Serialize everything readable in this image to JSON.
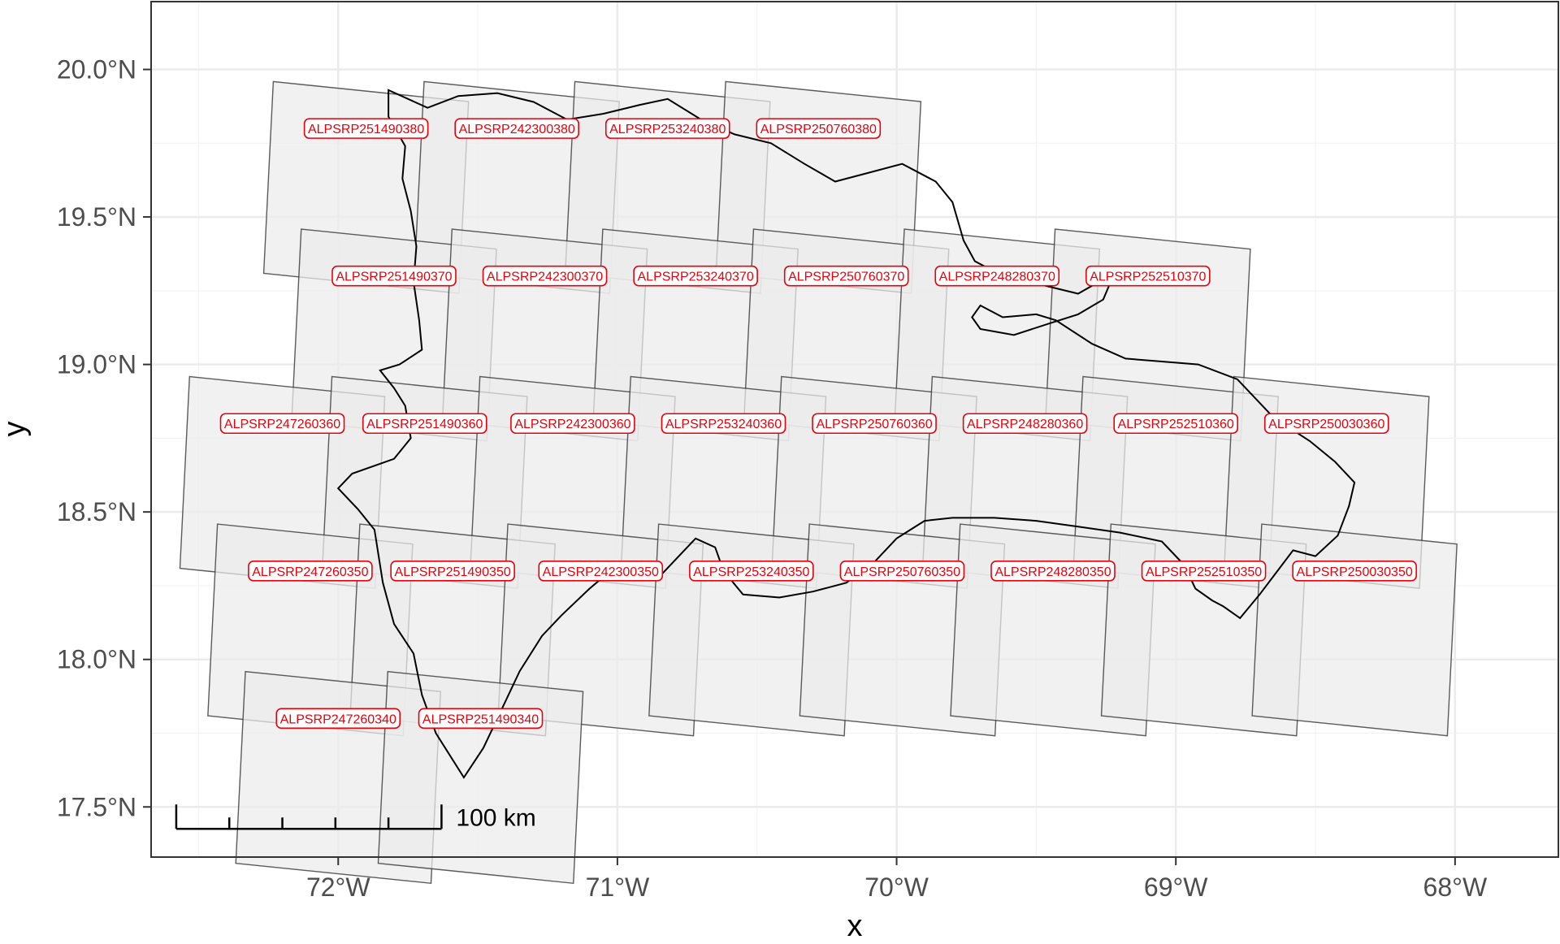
{
  "chart_data": {
    "type": "map",
    "x_label": "x",
    "y_label": "y",
    "x_range": [
      -72.67,
      -67.63
    ],
    "y_range": [
      17.33,
      20.23
    ],
    "x_ticks": [
      {
        "value": -72,
        "label": "72°W"
      },
      {
        "value": -71,
        "label": "71°W"
      },
      {
        "value": -70,
        "label": "70°W"
      },
      {
        "value": -69,
        "label": "69°W"
      },
      {
        "value": -68,
        "label": "68°W"
      }
    ],
    "y_ticks": [
      {
        "value": 17.5,
        "label": "17.5°N"
      },
      {
        "value": 18.0,
        "label": "18.0°N"
      },
      {
        "value": 18.5,
        "label": "18.5°N"
      },
      {
        "value": 19.0,
        "label": "19.0°N"
      },
      {
        "value": 19.5,
        "label": "19.5°N"
      },
      {
        "value": 20.0,
        "label": "20.0°N"
      }
    ],
    "grid": true,
    "footprint_color": "#ebebeb",
    "label_color": "#e8000b",
    "coastline_color": "#000000",
    "scale_bar": {
      "label": "100 km",
      "segments": 5,
      "lon_start": -72.58,
      "lon_end": -71.63,
      "lat": 17.5
    },
    "scenes": [
      {
        "label": "ALPSRP251490380",
        "lon": -71.9,
        "lat": 19.8
      },
      {
        "label": "ALPSRP242300380",
        "lon": -71.36,
        "lat": 19.8
      },
      {
        "label": "ALPSRP253240380",
        "lon": -70.82,
        "lat": 19.8
      },
      {
        "label": "ALPSRP250760380",
        "lon": -70.28,
        "lat": 19.8
      },
      {
        "label": "ALPSRP251490370",
        "lon": -71.8,
        "lat": 19.3
      },
      {
        "label": "ALPSRP242300370",
        "lon": -71.26,
        "lat": 19.3
      },
      {
        "label": "ALPSRP253240370",
        "lon": -70.72,
        "lat": 19.3
      },
      {
        "label": "ALPSRP250760370",
        "lon": -70.18,
        "lat": 19.3
      },
      {
        "label": "ALPSRP248280370",
        "lon": -69.64,
        "lat": 19.3
      },
      {
        "label": "ALPSRP252510370",
        "lon": -69.1,
        "lat": 19.3
      },
      {
        "label": "ALPSRP247260360",
        "lon": -72.2,
        "lat": 18.8
      },
      {
        "label": "ALPSRP251490360",
        "lon": -71.69,
        "lat": 18.8
      },
      {
        "label": "ALPSRP242300360",
        "lon": -71.16,
        "lat": 18.8
      },
      {
        "label": "ALPSRP253240360",
        "lon": -70.62,
        "lat": 18.8
      },
      {
        "label": "ALPSRP250760360",
        "lon": -70.08,
        "lat": 18.8
      },
      {
        "label": "ALPSRP248280360",
        "lon": -69.54,
        "lat": 18.8
      },
      {
        "label": "ALPSRP252510360",
        "lon": -69.0,
        "lat": 18.8
      },
      {
        "label": "ALPSRP250030360",
        "lon": -68.46,
        "lat": 18.8
      },
      {
        "label": "ALPSRP247260350",
        "lon": -72.1,
        "lat": 18.3
      },
      {
        "label": "ALPSRP251490350",
        "lon": -71.59,
        "lat": 18.3
      },
      {
        "label": "ALPSRP242300350",
        "lon": -71.06,
        "lat": 18.3
      },
      {
        "label": "ALPSRP253240350",
        "lon": -70.52,
        "lat": 18.3
      },
      {
        "label": "ALPSRP250760350",
        "lon": -69.98,
        "lat": 18.3
      },
      {
        "label": "ALPSRP248280350",
        "lon": -69.44,
        "lat": 18.3
      },
      {
        "label": "ALPSRP252510350",
        "lon": -68.9,
        "lat": 18.3
      },
      {
        "label": "ALPSRP250030350",
        "lon": -68.36,
        "lat": 18.3
      },
      {
        "label": "ALPSRP247260340",
        "lon": -72.0,
        "lat": 17.8
      },
      {
        "label": "ALPSRP251490340",
        "lon": -71.49,
        "lat": 17.8
      }
    ],
    "coastline": [
      [
        -71.82,
        19.93
      ],
      [
        -71.68,
        19.87
      ],
      [
        -71.57,
        19.91
      ],
      [
        -71.43,
        19.92
      ],
      [
        -71.3,
        19.89
      ],
      [
        -71.18,
        19.83
      ],
      [
        -71.05,
        19.85
      ],
      [
        -70.92,
        19.88
      ],
      [
        -70.82,
        19.9
      ],
      [
        -70.7,
        19.83
      ],
      [
        -70.58,
        19.78
      ],
      [
        -70.45,
        19.75
      ],
      [
        -70.33,
        19.68
      ],
      [
        -70.22,
        19.62
      ],
      [
        -70.1,
        19.65
      ],
      [
        -69.98,
        19.68
      ],
      [
        -69.86,
        19.62
      ],
      [
        -69.8,
        19.55
      ],
      [
        -69.76,
        19.42
      ],
      [
        -69.72,
        19.35
      ],
      [
        -69.6,
        19.29
      ],
      [
        -69.48,
        19.27
      ],
      [
        -69.35,
        19.24
      ],
      [
        -69.22,
        19.31
      ],
      [
        -69.26,
        19.22
      ],
      [
        -69.35,
        19.17
      ],
      [
        -69.45,
        19.14
      ],
      [
        -69.58,
        19.1
      ],
      [
        -69.7,
        19.12
      ],
      [
        -69.73,
        19.16
      ],
      [
        -69.7,
        19.2
      ],
      [
        -69.62,
        19.16
      ],
      [
        -69.5,
        19.17
      ],
      [
        -69.43,
        19.15
      ],
      [
        -69.3,
        19.07
      ],
      [
        -69.18,
        19.02
      ],
      [
        -69.05,
        19.01
      ],
      [
        -68.92,
        19.0
      ],
      [
        -68.78,
        18.95
      ],
      [
        -68.65,
        18.82
      ],
      [
        -68.52,
        18.74
      ],
      [
        -68.43,
        18.67
      ],
      [
        -68.36,
        18.6
      ],
      [
        -68.38,
        18.52
      ],
      [
        -68.42,
        18.42
      ],
      [
        -68.5,
        18.35
      ],
      [
        -68.58,
        18.37
      ],
      [
        -68.62,
        18.32
      ],
      [
        -68.7,
        18.22
      ],
      [
        -68.77,
        18.14
      ],
      [
        -68.83,
        18.18
      ],
      [
        -68.87,
        18.2
      ],
      [
        -68.93,
        18.24
      ],
      [
        -68.97,
        18.32
      ],
      [
        -69.05,
        18.4
      ],
      [
        -69.2,
        18.43
      ],
      [
        -69.35,
        18.45
      ],
      [
        -69.5,
        18.47
      ],
      [
        -69.65,
        18.48
      ],
      [
        -69.8,
        18.48
      ],
      [
        -69.9,
        18.47
      ],
      [
        -70.0,
        18.41
      ],
      [
        -70.08,
        18.33
      ],
      [
        -70.18,
        18.26
      ],
      [
        -70.3,
        18.23
      ],
      [
        -70.42,
        18.21
      ],
      [
        -70.55,
        18.22
      ],
      [
        -70.62,
        18.3
      ],
      [
        -70.65,
        18.38
      ],
      [
        -70.72,
        18.41
      ],
      [
        -70.78,
        18.35
      ],
      [
        -70.85,
        18.28
      ],
      [
        -70.95,
        18.27
      ],
      [
        -71.05,
        18.28
      ],
      [
        -71.1,
        18.24
      ],
      [
        -71.2,
        18.15
      ],
      [
        -71.27,
        18.08
      ],
      [
        -71.35,
        17.96
      ],
      [
        -71.42,
        17.82
      ],
      [
        -71.48,
        17.7
      ],
      [
        -71.55,
        17.6
      ],
      [
        -71.65,
        17.75
      ],
      [
        -71.7,
        17.88
      ],
      [
        -71.73,
        18.02
      ],
      [
        -71.8,
        18.12
      ],
      [
        -71.84,
        18.26
      ],
      [
        -71.87,
        18.44
      ],
      [
        -71.93,
        18.51
      ],
      [
        -72.0,
        18.58
      ],
      [
        -71.95,
        18.63
      ],
      [
        -71.8,
        18.68
      ],
      [
        -71.74,
        18.75
      ],
      [
        -71.76,
        18.86
      ],
      [
        -71.8,
        18.92
      ],
      [
        -71.85,
        18.98
      ],
      [
        -71.78,
        19.0
      ],
      [
        -71.7,
        19.05
      ],
      [
        -71.71,
        19.15
      ],
      [
        -71.73,
        19.28
      ],
      [
        -71.72,
        19.4
      ],
      [
        -71.74,
        19.52
      ],
      [
        -71.77,
        19.63
      ],
      [
        -71.76,
        19.74
      ],
      [
        -71.82,
        19.84
      ],
      [
        -71.82,
        19.93
      ]
    ]
  }
}
